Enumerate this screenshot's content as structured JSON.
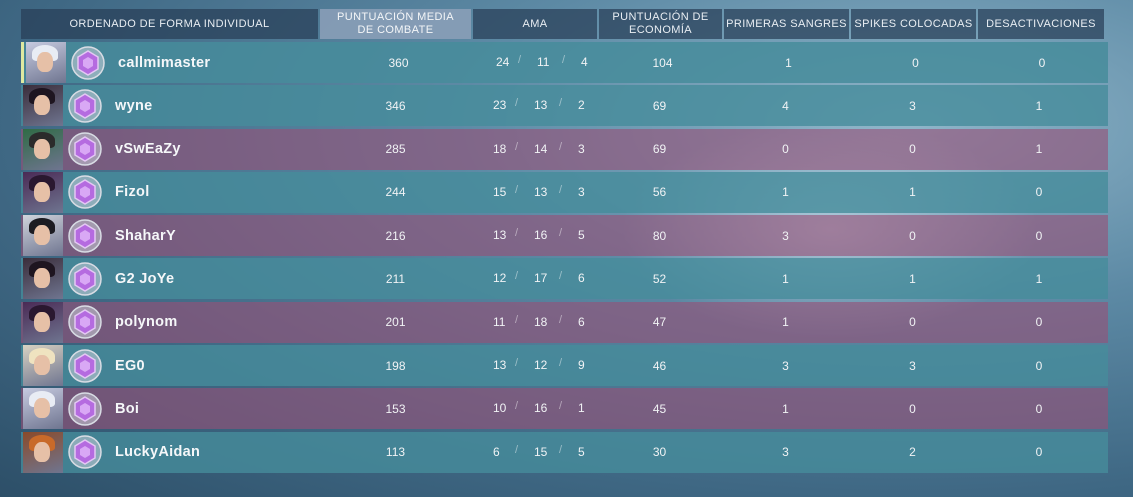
{
  "header": {
    "player_col": "ORDENADO DE FORMA INDIVIDUAL",
    "acs_line1": "PUNTUACIÓN MEDIA",
    "acs_line2": "DE COMBATE",
    "kda": "AMA",
    "econ_line1": "PUNTUACIÓN DE",
    "econ_line2": "ECONOMÍA",
    "first_bloods": "PRIMERAS SANGRES",
    "plants": "SPIKES COLOCADAS",
    "defuses": "DESACTIVACIONES"
  },
  "players": [
    {
      "name": "callmimaster",
      "acs": "360",
      "k": "24",
      "d": "11",
      "a": "4",
      "econ": "104",
      "fb": "1",
      "plants": "0",
      "defuses": "0",
      "team": "self",
      "agent_color": "#c7cbe0",
      "hair_color": "#e8ecf4"
    },
    {
      "name": "wyne",
      "acs": "346",
      "k": "23",
      "d": "13",
      "a": "2",
      "econ": "69",
      "fb": "4",
      "plants": "3",
      "defuses": "1",
      "team": "teal",
      "agent_color": "#3a2d3a",
      "hair_color": "#1e1520"
    },
    {
      "name": "vSwEaZy",
      "acs": "285",
      "k": "18",
      "d": "14",
      "a": "3",
      "econ": "69",
      "fb": "0",
      "plants": "0",
      "defuses": "1",
      "team": "red",
      "agent_color": "#2f6b45",
      "hair_color": "#2b2b2b"
    },
    {
      "name": "Fizol",
      "acs": "244",
      "k": "15",
      "d": "13",
      "a": "3",
      "econ": "56",
      "fb": "1",
      "plants": "1",
      "defuses": "0",
      "team": "teal",
      "agent_color": "#4a2a55",
      "hair_color": "#2a1830"
    },
    {
      "name": "ShaharY",
      "acs": "216",
      "k": "13",
      "d": "16",
      "a": "5",
      "econ": "80",
      "fb": "3",
      "plants": "0",
      "defuses": "0",
      "team": "red",
      "agent_color": "#d0d4dc",
      "hair_color": "#1c1c22"
    },
    {
      "name": "G2 JoYe",
      "acs": "211",
      "k": "12",
      "d": "17",
      "a": "6",
      "econ": "52",
      "fb": "1",
      "plants": "1",
      "defuses": "1",
      "team": "teal",
      "agent_color": "#3a2d3a",
      "hair_color": "#1e1520"
    },
    {
      "name": "polynom",
      "acs": "201",
      "k": "11",
      "d": "18",
      "a": "6",
      "econ": "47",
      "fb": "1",
      "plants": "0",
      "defuses": "0",
      "team": "red",
      "agent_color": "#4a2a55",
      "hair_color": "#2a1830"
    },
    {
      "name": "EG0",
      "acs": "198",
      "k": "13",
      "d": "12",
      "a": "9",
      "econ": "46",
      "fb": "3",
      "plants": "3",
      "defuses": "0",
      "team": "teal",
      "agent_color": "#d8d2c2",
      "hair_color": "#efe3c0"
    },
    {
      "name": "Boi",
      "acs": "153",
      "k": "10",
      "d": "16",
      "a": "1",
      "econ": "45",
      "fb": "1",
      "plants": "0",
      "defuses": "0",
      "team": "red",
      "agent_color": "#c7cbe0",
      "hair_color": "#e8ecf4"
    },
    {
      "name": "LuckyAidan",
      "acs": "113",
      "k": "6",
      "d": "15",
      "a": "5",
      "econ": "30",
      "fb": "3",
      "plants": "2",
      "defuses": "0",
      "team": "teal",
      "agent_color": "#8a4a2a",
      "hair_color": "#c86a2a"
    }
  ],
  "icons": {
    "rank": "rank-emblem-icon",
    "agent": "agent-portrait-icon"
  }
}
